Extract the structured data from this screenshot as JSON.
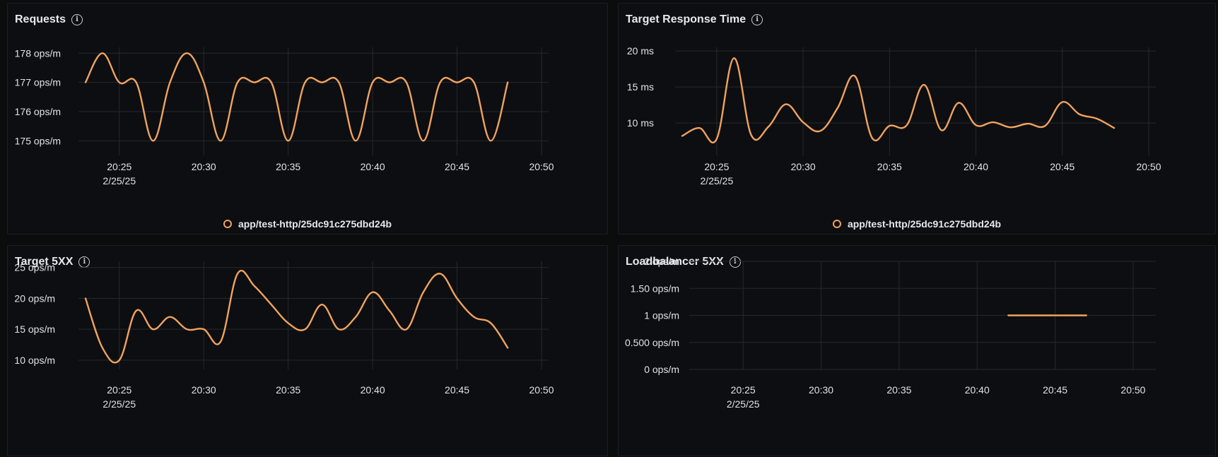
{
  "colors": {
    "series": "#f0a35e",
    "grid": "#26282d",
    "tick": "#e2e3e6"
  },
  "panels": [
    {
      "title": "Requests",
      "legend": "app/test-http/25dc91c275dbd24b",
      "chart_data": {
        "type": "line",
        "title": "Requests",
        "x_ticks": [
          "20:25",
          "20:30",
          "20:35",
          "20:40",
          "20:45",
          "20:50"
        ],
        "x_date_label": "2/25/25",
        "xlim": [
          "20:23",
          "20:50"
        ],
        "y_ticks": [
          175,
          176,
          177,
          178
        ],
        "y_tick_labels": [
          "175 ops/m",
          "176 ops/m",
          "177 ops/m",
          "178 ops/m"
        ],
        "ylim": [
          174.5,
          178.2
        ],
        "series": [
          {
            "name": "app/test-http/25dc91c275dbd24b",
            "x": [
              "20:23",
              "20:24",
              "20:25",
              "20:26",
              "20:27",
              "20:28",
              "20:29",
              "20:30",
              "20:31",
              "20:32",
              "20:33",
              "20:34",
              "20:35",
              "20:36",
              "20:37",
              "20:38",
              "20:39",
              "20:40",
              "20:41",
              "20:42",
              "20:43",
              "20:44",
              "20:45",
              "20:46",
              "20:47",
              "20:48"
            ],
            "y": [
              177,
              178,
              177,
              177,
              175,
              177,
              178,
              177,
              175,
              177,
              177,
              177,
              175,
              177,
              177,
              177,
              175,
              177,
              177,
              177,
              175,
              177,
              177,
              177,
              175,
              177
            ]
          }
        ],
        "grid": true,
        "legend_position": "bottom-center"
      }
    },
    {
      "title": "Target Response Time",
      "legend": "app/test-http/25dc91c275dbd24b",
      "chart_data": {
        "type": "line",
        "title": "Target Response Time",
        "x_ticks": [
          "20:25",
          "20:30",
          "20:35",
          "20:40",
          "20:45",
          "20:50"
        ],
        "x_date_label": "2/25/25",
        "xlim": [
          "20:23",
          "20:50"
        ],
        "y_ticks": [
          10,
          15,
          20
        ],
        "y_tick_labels": [
          "10 ms",
          "15 ms",
          "20 ms"
        ],
        "ylim": [
          5.5,
          20.5
        ],
        "series": [
          {
            "name": "app/test-http/25dc91c275dbd24b",
            "x": [
              "20:23",
              "20:24",
              "20:25",
              "20:26",
              "20:27",
              "20:28",
              "20:29",
              "20:30",
              "20:31",
              "20:32",
              "20:33",
              "20:34",
              "20:35",
              "20:36",
              "20:37",
              "20:38",
              "20:39",
              "20:40",
              "20:41",
              "20:42",
              "20:43",
              "20:44",
              "20:45",
              "20:46",
              "20:47",
              "20:48"
            ],
            "y": [
              8.2,
              9.3,
              7.8,
              19,
              8.3,
              9.5,
              12.6,
              10.1,
              8.9,
              12.1,
              16.5,
              7.9,
              9.6,
              9.7,
              15.3,
              9.0,
              12.8,
              9.7,
              10.1,
              9.4,
              9.9,
              9.6,
              12.9,
              11.2,
              10.6,
              9.3
            ]
          }
        ],
        "grid": true,
        "legend_position": "bottom-center"
      }
    },
    {
      "title": "Target 5XX",
      "chart_data": {
        "type": "line",
        "title": "Target 5XX",
        "x_ticks": [
          "20:25",
          "20:30",
          "20:35",
          "20:40",
          "20:45",
          "20:50"
        ],
        "x_date_label": "2/25/25",
        "xlim": [
          "20:23",
          "20:50"
        ],
        "y_ticks": [
          10,
          15,
          20,
          25
        ],
        "y_tick_labels": [
          "10 ops/m",
          "15 ops/m",
          "20 ops/m",
          "25 ops/m"
        ],
        "ylim": [
          8.5,
          26
        ],
        "series": [
          {
            "name": "",
            "x": [
              "20:23",
              "20:24",
              "20:25",
              "20:26",
              "20:27",
              "20:28",
              "20:29",
              "20:30",
              "20:31",
              "20:32",
              "20:33",
              "20:34",
              "20:35",
              "20:36",
              "20:37",
              "20:38",
              "20:39",
              "20:40",
              "20:41",
              "20:42",
              "20:43",
              "20:44",
              "20:45",
              "20:46",
              "20:47",
              "20:48"
            ],
            "y": [
              20,
              12,
              10,
              18,
              15,
              17,
              15,
              15,
              13,
              24,
              22,
              19,
              16,
              15,
              19,
              15,
              17,
              21,
              18,
              15,
              21,
              24,
              20,
              17,
              16,
              12
            ]
          }
        ],
        "grid": true
      }
    },
    {
      "title": "Loadbalancer 5XX",
      "chart_data": {
        "type": "line",
        "title": "Loadbalancer 5XX",
        "x_ticks": [
          "20:25",
          "20:30",
          "20:35",
          "20:40",
          "20:45",
          "20:50"
        ],
        "x_date_label": "2/25/25",
        "xlim": [
          "20:22",
          "20:51"
        ],
        "y_ticks": [
          0,
          0.5,
          1,
          1.5,
          2
        ],
        "y_tick_labels": [
          "0 ops/m",
          "0.500 ops/m",
          "1 ops/m",
          "1.50 ops/m",
          "2 ops/m"
        ],
        "ylim": [
          0,
          2
        ],
        "series": [
          {
            "name": "",
            "x": [
              "20:42",
              "20:47"
            ],
            "y": [
              1,
              1
            ]
          }
        ],
        "grid": true
      }
    }
  ]
}
